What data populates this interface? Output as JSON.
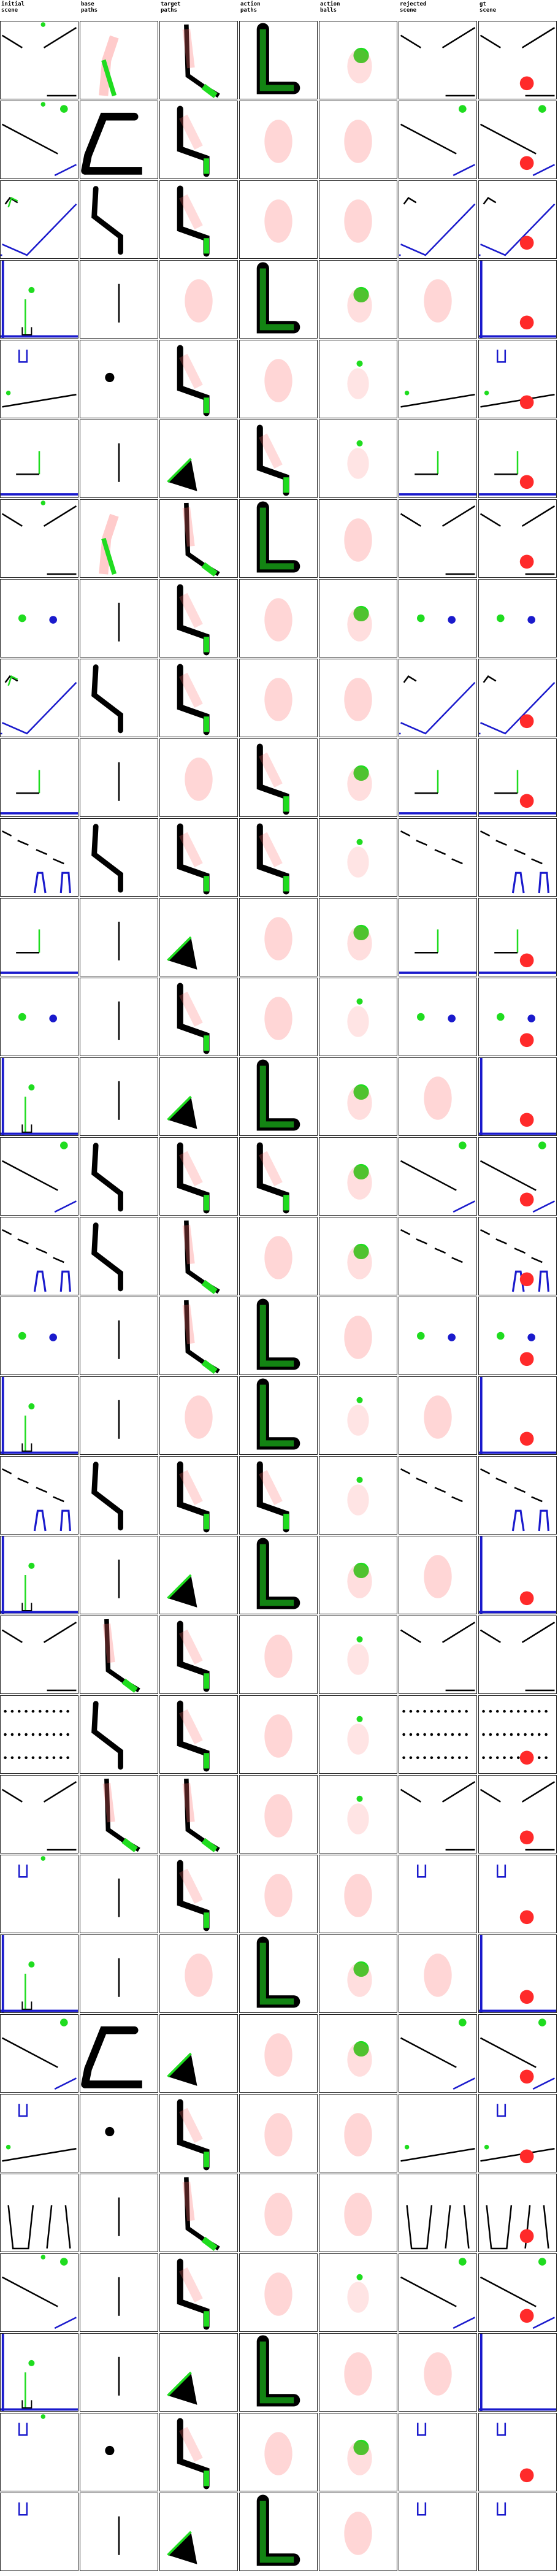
{
  "columns": [
    {
      "key": "initial",
      "title": "initial\nscene"
    },
    {
      "key": "base",
      "title": "base\npaths"
    },
    {
      "key": "target",
      "title": "target\npaths"
    },
    {
      "key": "action_paths",
      "title": "action\npaths"
    },
    {
      "key": "action_balls",
      "title": "action\nballs"
    },
    {
      "key": "rejected",
      "title": "rejected\nscene"
    },
    {
      "key": "gt",
      "title": "gt\nscene"
    }
  ],
  "colors": {
    "green": "#1fdc1f",
    "red": "#ff2a2a",
    "blue": "#1a1acc",
    "black": "#000000",
    "heat": "#ff6b6b",
    "border": "#222222"
  },
  "rows": [
    {
      "i": [
        "V",
        "gball"
      ],
      "b": "redgreen",
      "t": "green_up",
      "ap": "Lthick",
      "ab": "bigdot",
      "r": "V",
      "g": [
        "V",
        "rball"
      ]
    },
    {
      "i": [
        "diag",
        "gball"
      ],
      "b": "box",
      "t": "hook",
      "ap": "blob",
      "ab": "blob",
      "r": "diag",
      "g": [
        "diag",
        "rball"
      ]
    },
    {
      "i": [
        "wedge",
        "bracket"
      ],
      "b": "bend",
      "t": "hook",
      "ap": "blob",
      "ab": "blob",
      "r": "wedge",
      "g": [
        "wedge",
        "rball"
      ]
    },
    {
      "i": [
        "bluewall",
        "stem"
      ],
      "b": "line",
      "t": "blob",
      "ap": "Lthick",
      "ab": "bigdot",
      "r": "blob",
      "g": [
        "bluewall",
        "rball"
      ]
    },
    {
      "i": [
        "cup",
        "slope"
      ],
      "b": "dot",
      "t": "hook",
      "ap": "blob",
      "ab": "smalldot",
      "r": "slope",
      "g": [
        "cup",
        "slope",
        "rball"
      ]
    },
    {
      "i": [
        "L"
      ],
      "b": "line",
      "t": "triangle",
      "ap": "hook",
      "ab": "smalldot",
      "r": "L",
      "g": [
        "L",
        "rball"
      ]
    },
    {
      "i": [
        "V",
        "gball"
      ],
      "b": "redgreen",
      "t": "green_up",
      "ap": "Lthick",
      "ab": "blob",
      "r": "V",
      "g": [
        "V",
        "rball"
      ]
    },
    {
      "i": [
        "balls"
      ],
      "b": "line",
      "t": "hook",
      "ap": "blob",
      "ab": "bigdot",
      "r": "balls",
      "g": [
        "balls"
      ]
    },
    {
      "i": [
        "wedge",
        "bracket"
      ],
      "b": "bend",
      "t": "hook",
      "ap": "blob",
      "ab": "blob",
      "r": "wedge",
      "g": [
        "wedge",
        "rball"
      ]
    },
    {
      "i": [
        "L"
      ],
      "b": "line",
      "t": "blob",
      "ap": "hook",
      "ab": "bigdot",
      "r": "L",
      "g": [
        "L",
        "rball"
      ]
    },
    {
      "i": [
        "stairs",
        "pits"
      ],
      "b": "bend",
      "t": "hook",
      "ap": "hook",
      "ab": "smalldot",
      "r": "stairs",
      "g": [
        "stairs",
        "pits"
      ]
    },
    {
      "i": [
        "L"
      ],
      "b": "line",
      "t": "triangle",
      "ap": "blob",
      "ab": "bigdot",
      "r": "L",
      "g": [
        "L",
        "rball"
      ]
    },
    {
      "i": [
        "balls"
      ],
      "b": "line",
      "t": "hook",
      "ap": "blob",
      "ab": "smalldot",
      "r": "balls",
      "g": [
        "balls",
        "rball"
      ]
    },
    {
      "i": [
        "bluewall",
        "stem"
      ],
      "b": "line",
      "t": "triangle",
      "ap": "Lthick",
      "ab": "bigdot",
      "r": "blob",
      "g": [
        "bluewall",
        "rball"
      ]
    },
    {
      "i": [
        "diag"
      ],
      "b": "bend",
      "t": "hook",
      "ap": "hook",
      "ab": "bigdot",
      "r": "diag",
      "g": [
        "diag",
        "rball"
      ]
    },
    {
      "i": [
        "stairs",
        "pits"
      ],
      "b": "bend",
      "t": "green_up",
      "ap": "blob",
      "ab": "bigdot",
      "r": "stairs",
      "g": [
        "stairs",
        "pits",
        "rball"
      ]
    },
    {
      "i": [
        "balls"
      ],
      "b": "line",
      "t": "green_up",
      "ap": "Lthick",
      "ab": "blob",
      "r": "balls",
      "g": [
        "balls",
        "rball"
      ]
    },
    {
      "i": [
        "bluewall",
        "stem"
      ],
      "b": "line",
      "t": "blob",
      "ap": "Lthick",
      "ab": "smalldot",
      "r": "blob",
      "g": [
        "bluewall",
        "rball"
      ]
    },
    {
      "i": [
        "stairs",
        "pits"
      ],
      "b": "bend",
      "t": "hook",
      "ap": "hook",
      "ab": "smalldot",
      "r": "stairs",
      "g": [
        "stairs",
        "pits"
      ]
    },
    {
      "i": [
        "bluewall",
        "stem"
      ],
      "b": "line",
      "t": "triangle",
      "ap": "Lthick",
      "ab": "bigdot",
      "r": "blob",
      "g": [
        "bluewall",
        "rball"
      ]
    },
    {
      "i": [
        "V"
      ],
      "b": "green_up",
      "t": "hook",
      "ap": "blob",
      "ab": "smalldot",
      "r": "V",
      "g": [
        "V"
      ]
    },
    {
      "i": [
        "dots"
      ],
      "b": "bend",
      "t": "hook",
      "ap": "blob",
      "ab": "smalldot",
      "r": "dots",
      "g": [
        "dots",
        "rball"
      ]
    },
    {
      "i": [
        "V"
      ],
      "b": "green_up",
      "t": "green_up",
      "ap": "blob",
      "ab": "smalldot",
      "r": "V",
      "g": [
        "V",
        "rball"
      ]
    },
    {
      "i": [
        "cup",
        "gball"
      ],
      "b": "line",
      "t": "hook",
      "ap": "blob",
      "ab": "blob",
      "r": "cup",
      "g": [
        "cup",
        "rball"
      ]
    },
    {
      "i": [
        "bluewall",
        "stem"
      ],
      "b": "line",
      "t": "blob",
      "ap": "Lthick",
      "ab": "bigdot",
      "r": "blob",
      "g": [
        "bluewall",
        "rball"
      ]
    },
    {
      "i": [
        "diag"
      ],
      "b": "box",
      "t": "triangle",
      "ap": "blob",
      "ab": "bigdot",
      "r": "diag",
      "g": [
        "diag",
        "rball"
      ]
    },
    {
      "i": [
        "cup",
        "slope"
      ],
      "b": "dot",
      "t": "hook",
      "ap": "blob",
      "ab": "blob",
      "r": "slope",
      "g": [
        "cup",
        "slope",
        "rball"
      ]
    },
    {
      "i": [
        "tallcup"
      ],
      "b": "line",
      "t": "green_up",
      "ap": "blob",
      "ab": "blob",
      "r": "tallcup",
      "g": [
        "tallcup",
        "rball"
      ]
    },
    {
      "i": [
        "diag",
        "gball"
      ],
      "b": "line",
      "t": "hook",
      "ap": "blob",
      "ab": "smalldot",
      "r": "diag",
      "g": [
        "diag",
        "rball"
      ]
    },
    {
      "i": [
        "bluewall",
        "stem"
      ],
      "b": "line",
      "t": "triangle",
      "ap": "Lthick",
      "ab": "blob",
      "r": "blob",
      "g": [
        "bluewall"
      ]
    },
    {
      "i": [
        "cup",
        "gball"
      ],
      "b": "dot",
      "t": "hook",
      "ap": "blob",
      "ab": "bigdot",
      "r": "cup",
      "g": [
        "cup",
        "rball"
      ]
    },
    {
      "i": [
        "cup"
      ],
      "b": "line",
      "t": "triangle",
      "ap": "Lthick",
      "ab": "blob",
      "r": "cup",
      "g": [
        "cup"
      ]
    }
  ]
}
